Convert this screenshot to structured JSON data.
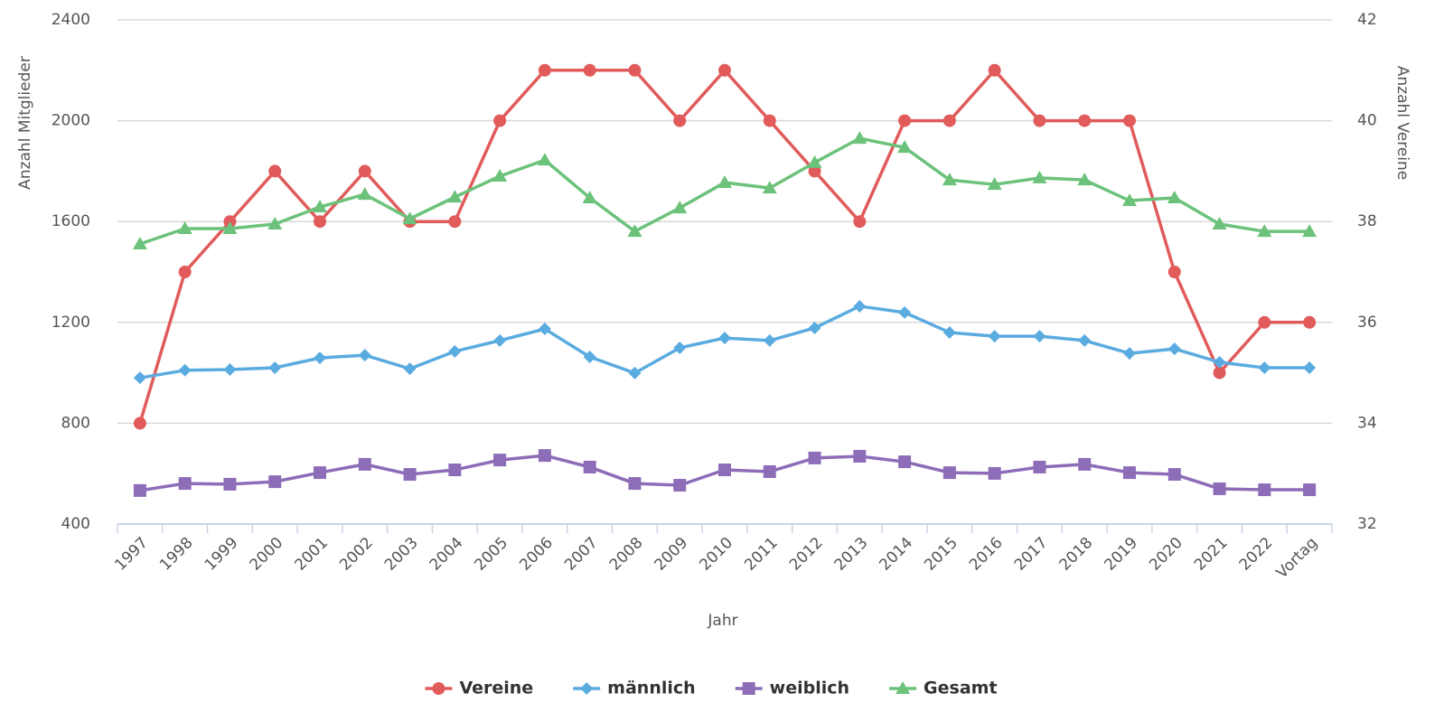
{
  "chart_data": {
    "type": "line",
    "x_label": "Jahr",
    "y_label": "Anzahl Mitglieder",
    "y2_label": "Anzahl Vereine",
    "categories": [
      "1997",
      "1998",
      "1999",
      "2000",
      "2001",
      "2002",
      "2003",
      "2004",
      "2005",
      "2006",
      "2007",
      "2008",
      "2009",
      "2010",
      "2011",
      "2012",
      "2013",
      "2014",
      "2015",
      "2016",
      "2017",
      "2018",
      "2019",
      "2020",
      "2021",
      "2022",
      "Vortag"
    ],
    "ylim": [
      400,
      2400
    ],
    "yticks": [
      400,
      800,
      1200,
      1600,
      2000,
      2400
    ],
    "y2lim": [
      32,
      42
    ],
    "y2ticks": [
      32,
      34,
      36,
      38,
      40,
      42
    ],
    "grid": true,
    "legend": "bottom",
    "series": [
      {
        "name": "Vereine",
        "color": "#e15b5b",
        "marker": "circle",
        "axis": "y2",
        "values": [
          34,
          37,
          38,
          39,
          38,
          39,
          38,
          38,
          40,
          41,
          41,
          41,
          40,
          41,
          40,
          39,
          38,
          40,
          40,
          41,
          40,
          40,
          40,
          37,
          35,
          36,
          36
        ]
      },
      {
        "name": "männlich",
        "color": "#5aabe0",
        "marker": "diamond",
        "values": [
          980,
          1010,
          1013,
          1020,
          1059,
          1070,
          1016,
          1085,
          1128,
          1174,
          1063,
          999,
          1099,
          1138,
          1128,
          1178,
          1264,
          1239,
          1160,
          1145,
          1145,
          1128,
          1077,
          1095,
          1042,
          1020,
          1020
        ]
      },
      {
        "name": "weiblich",
        "color": "#8d6cb8",
        "marker": "square",
        "values": [
          533,
          561,
          558,
          568,
          604,
          637,
          597,
          615,
          654,
          672,
          626,
          561,
          554,
          615,
          608,
          662,
          669,
          647,
          604,
          601,
          626,
          637,
          604,
          597,
          540,
          536,
          536
        ]
      },
      {
        "name": "Gesamt",
        "color": "#6cc27a",
        "marker": "triangle",
        "values": [
          1511,
          1572,
          1572,
          1590,
          1658,
          1708,
          1611,
          1697,
          1780,
          1844,
          1694,
          1561,
          1654,
          1755,
          1733,
          1834,
          1930,
          1894,
          1765,
          1747,
          1773,
          1765,
          1683,
          1694,
          1590,
          1561,
          1561
        ]
      }
    ]
  }
}
